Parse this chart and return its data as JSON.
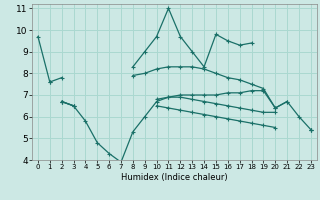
{
  "xlabel": "Humidex (Indice chaleur)",
  "bg_color": "#cce8e4",
  "grid_color": "#aad8d0",
  "line_color": "#1a7068",
  "xlim": [
    -0.5,
    23.5
  ],
  "ylim": [
    4,
    11.2
  ],
  "yticks": [
    4,
    5,
    6,
    7,
    8,
    9,
    10,
    11
  ],
  "xticks": [
    0,
    1,
    2,
    3,
    4,
    5,
    6,
    7,
    8,
    9,
    10,
    11,
    12,
    13,
    14,
    15,
    16,
    17,
    18,
    19,
    20,
    21,
    22,
    23
  ],
  "series": [
    [
      9.7,
      7.6,
      null,
      null,
      null,
      null,
      null,
      null,
      8.3,
      9.0,
      9.7,
      11.0,
      9.7,
      9.0,
      8.3,
      9.8,
      9.5,
      9.3,
      9.4,
      null,
      null,
      null,
      null,
      null
    ],
    [
      null,
      7.6,
      7.8,
      null,
      null,
      null,
      null,
      null,
      7.9,
      8.0,
      8.2,
      8.3,
      8.3,
      8.3,
      8.2,
      8.0,
      7.8,
      7.7,
      7.5,
      7.3,
      6.4,
      6.7,
      null,
      null
    ],
    [
      null,
      null,
      6.7,
      6.5,
      5.8,
      4.8,
      4.3,
      3.9,
      5.3,
      6.0,
      6.7,
      6.9,
      7.0,
      7.0,
      7.0,
      7.0,
      7.1,
      7.1,
      7.2,
      7.2,
      6.4,
      6.7,
      6.0,
      5.4
    ],
    [
      null,
      null,
      6.7,
      6.5,
      null,
      null,
      null,
      null,
      null,
      null,
      6.8,
      6.9,
      6.9,
      6.8,
      6.7,
      6.6,
      6.5,
      6.4,
      6.3,
      6.2,
      6.2,
      null,
      null,
      5.4
    ],
    [
      null,
      null,
      6.7,
      6.5,
      null,
      null,
      null,
      null,
      null,
      null,
      6.5,
      6.4,
      6.3,
      6.2,
      6.1,
      6.0,
      5.9,
      5.8,
      5.7,
      5.6,
      5.5,
      null,
      null,
      5.4
    ]
  ]
}
